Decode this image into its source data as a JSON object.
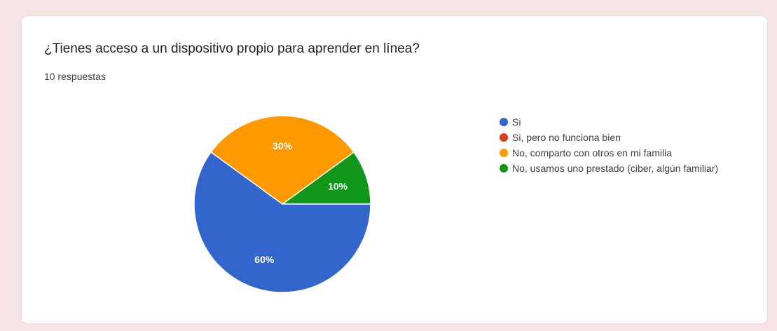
{
  "question": "¿Tienes acceso a un dispositivo propio para aprender en línea?",
  "response_count": "10 respuestas",
  "colors": {
    "blue": "#3366cc",
    "red": "#dc3912",
    "orange": "#ff9900",
    "green": "#109618"
  },
  "chart_data": {
    "type": "pie",
    "title": "¿Tienes acceso a un dispositivo propio para aprender en línea?",
    "legend_position": "right",
    "slices": [
      {
        "label": "Si",
        "value": 60,
        "display": "60%",
        "color": "#3366cc"
      },
      {
        "label": "Si, pero no funciona bien",
        "value": 0,
        "display": "",
        "color": "#dc3912"
      },
      {
        "label": "No, comparto con otros en mi familia",
        "value": 30,
        "display": "30%",
        "color": "#ff9900"
      },
      {
        "label": "No, usamos uno prestado (ciber, algún familiar)",
        "value": 10,
        "display": "10%",
        "color": "#109618"
      }
    ]
  }
}
